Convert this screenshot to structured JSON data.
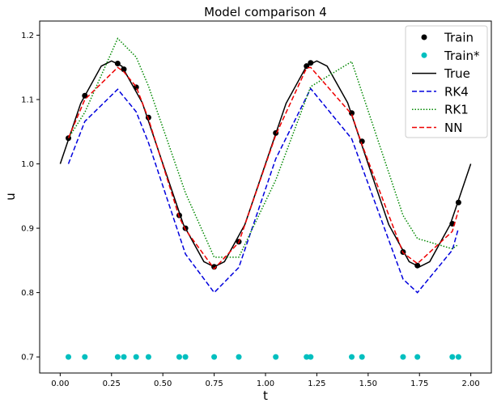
{
  "chart_data": {
    "type": "line",
    "title": "Model comparison 4",
    "xlabel": "t",
    "ylabel": "u",
    "xlim": [
      -0.1,
      2.1
    ],
    "ylim": [
      0.675,
      1.222
    ],
    "x_ticks": [
      0.0,
      0.25,
      0.5,
      0.75,
      1.0,
      1.25,
      1.5,
      1.75,
      2.0
    ],
    "x_tick_labels": [
      "0.00",
      "0.25",
      "0.50",
      "0.75",
      "1.00",
      "1.25",
      "1.50",
      "1.75",
      "2.00"
    ],
    "y_ticks": [
      0.7,
      0.8,
      0.9,
      1.0,
      1.1,
      1.2
    ],
    "y_tick_labels": [
      "0.7",
      "0.8",
      "0.9",
      "1.0",
      "1.1",
      "1.2"
    ],
    "grid": false,
    "legend_position": "top-right",
    "series": [
      {
        "name": "Train",
        "kind": "scatter",
        "color": "#000000",
        "x": [
          0.04,
          0.12,
          0.28,
          0.31,
          0.37,
          0.43,
          0.58,
          0.61,
          0.75,
          0.87,
          1.05,
          1.2,
          1.22,
          1.42,
          1.47,
          1.67,
          1.74,
          1.91,
          1.94
        ],
        "y": [
          1.04,
          1.106,
          1.156,
          1.147,
          1.119,
          1.072,
          0.92,
          0.9,
          0.84,
          0.879,
          1.048,
          1.152,
          1.157,
          1.079,
          1.035,
          0.863,
          0.842,
          0.907,
          0.94
        ]
      },
      {
        "name": "Train*",
        "kind": "scatter",
        "color": "#00bfbf",
        "x": [
          0.04,
          0.12,
          0.28,
          0.31,
          0.37,
          0.43,
          0.58,
          0.61,
          0.75,
          0.87,
          1.05,
          1.2,
          1.22,
          1.42,
          1.47,
          1.67,
          1.74,
          1.91,
          1.94
        ],
        "y": [
          0.7,
          0.7,
          0.7,
          0.7,
          0.7,
          0.7,
          0.7,
          0.7,
          0.7,
          0.7,
          0.7,
          0.7,
          0.7,
          0.7,
          0.7,
          0.7,
          0.7,
          0.7,
          0.7
        ]
      },
      {
        "name": "True",
        "kind": "line",
        "color": "#000000",
        "dash": "solid",
        "x": [
          0.0,
          0.1,
          0.2,
          0.25,
          0.3,
          0.4,
          0.5,
          0.6,
          0.7,
          0.75,
          0.8,
          0.9,
          1.0,
          1.1,
          1.2,
          1.25,
          1.3,
          1.4,
          1.5,
          1.6,
          1.7,
          1.75,
          1.8,
          1.9,
          2.0
        ],
        "y": [
          1.0,
          1.094,
          1.152,
          1.16,
          1.152,
          1.095,
          1.0,
          0.906,
          0.848,
          0.84,
          0.848,
          0.906,
          1.0,
          1.094,
          1.152,
          1.16,
          1.152,
          1.095,
          1.0,
          0.906,
          0.848,
          0.84,
          0.848,
          0.906,
          1.0
        ]
      },
      {
        "name": "RK4",
        "kind": "line",
        "color": "#0000dd",
        "dash": "dashed",
        "x": [
          0.04,
          0.12,
          0.28,
          0.37,
          0.43,
          0.61,
          0.75,
          0.87,
          1.05,
          1.22,
          1.42,
          1.67,
          1.74,
          1.91,
          1.94
        ],
        "y": [
          1.0,
          1.066,
          1.116,
          1.081,
          1.033,
          0.86,
          0.8,
          0.839,
          1.008,
          1.117,
          1.039,
          0.821,
          0.8,
          0.866,
          0.9
        ]
      },
      {
        "name": "RK1",
        "kind": "line",
        "color": "#008800",
        "dash": "dotted",
        "x": [
          0.04,
          0.12,
          0.28,
          0.37,
          0.43,
          0.61,
          0.75,
          0.87,
          1.05,
          1.22,
          1.42,
          1.67,
          1.74,
          1.91,
          1.94
        ],
        "y": [
          1.04,
          1.08,
          1.195,
          1.166,
          1.121,
          0.955,
          0.855,
          0.855,
          0.975,
          1.12,
          1.159,
          0.92,
          0.884,
          0.868,
          0.875
        ]
      },
      {
        "name": "NN",
        "kind": "line",
        "color": "#ee0000",
        "dash": "dashed",
        "x": [
          0.04,
          0.12,
          0.28,
          0.31,
          0.37,
          0.43,
          0.58,
          0.61,
          0.75,
          0.87,
          1.05,
          1.2,
          1.22,
          1.42,
          1.47,
          1.67,
          1.74,
          1.91,
          1.94
        ],
        "y": [
          1.04,
          1.1,
          1.15,
          1.143,
          1.12,
          1.07,
          0.917,
          0.898,
          0.837,
          0.878,
          1.045,
          1.149,
          1.15,
          1.077,
          1.03,
          0.862,
          0.845,
          0.895,
          0.928
        ]
      }
    ]
  }
}
